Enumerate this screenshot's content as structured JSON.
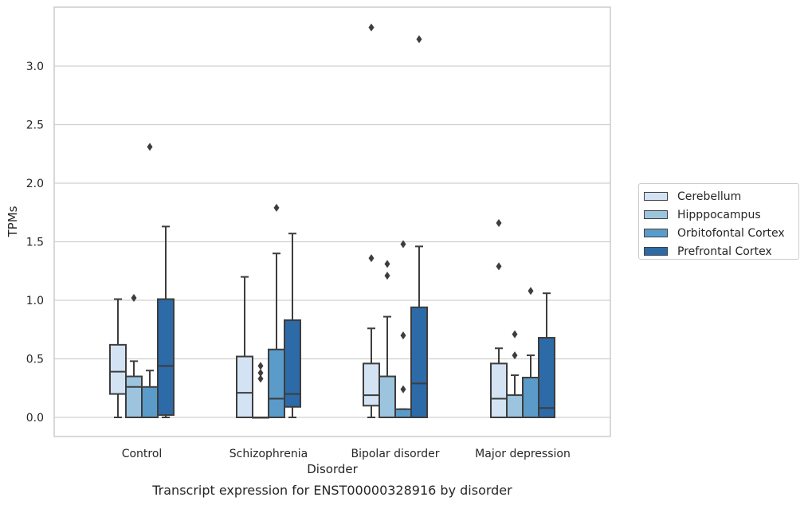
{
  "chart_data": {
    "type": "box",
    "xlabel": "Disorder",
    "ylabel": "TPMs",
    "caption": "Transcript expression for ENST00000328916 by disorder",
    "ylim": [
      -0.16,
      3.52
    ],
    "yticks": [
      0.0,
      0.5,
      1.0,
      1.5,
      2.0,
      2.5,
      3.0
    ],
    "ytick_labels": [
      "0.0",
      "0.5",
      "1.0",
      "1.5",
      "2.0",
      "2.5",
      "3.0"
    ],
    "grid": "horizontal",
    "legend_position": "right",
    "categories": [
      "Control",
      "Schizophrenia",
      "Bipolar disorder",
      "Major depression"
    ],
    "series": [
      {
        "name": "Cerebellum",
        "color": "#d4e3f3",
        "boxes": [
          {
            "whisker_low": 0.0,
            "q1": 0.2,
            "median": 0.39,
            "q3": 0.62,
            "whisker_high": 1.01,
            "outliers": []
          },
          {
            "whisker_low": 0.0,
            "q1": 0.0,
            "median": 0.21,
            "q3": 0.52,
            "whisker_high": 1.2,
            "outliers": []
          },
          {
            "whisker_low": 0.0,
            "q1": 0.1,
            "median": 0.19,
            "q3": 0.46,
            "whisker_high": 0.76,
            "outliers": [
              1.36,
              3.33
            ]
          },
          {
            "whisker_low": 0.0,
            "q1": 0.0,
            "median": 0.16,
            "q3": 0.46,
            "whisker_high": 0.59,
            "outliers": [
              1.29,
              1.66
            ]
          }
        ]
      },
      {
        "name": "Hipppocampus",
        "color": "#9dc4de",
        "boxes": [
          {
            "whisker_low": 0.0,
            "q1": 0.0,
            "median": 0.26,
            "q3": 0.35,
            "whisker_high": 0.48,
            "outliers": [
              1.02
            ]
          },
          {
            "whisker_low": 0.0,
            "q1": 0.0,
            "median": 0.0,
            "q3": 0.0,
            "whisker_high": 0.0,
            "outliers": [
              0.33,
              0.38,
              0.44
            ]
          },
          {
            "whisker_low": 0.0,
            "q1": 0.0,
            "median": 0.0,
            "q3": 0.35,
            "whisker_high": 0.86,
            "outliers": [
              1.21,
              1.31
            ]
          },
          {
            "whisker_low": 0.0,
            "q1": 0.0,
            "median": 0.0,
            "q3": 0.19,
            "whisker_high": 0.36,
            "outliers": [
              0.53,
              0.71
            ]
          }
        ]
      },
      {
        "name": "Orbitofontal Cortex",
        "color": "#5a9bc9",
        "boxes": [
          {
            "whisker_low": 0.0,
            "q1": 0.0,
            "median": 0.0,
            "q3": 0.26,
            "whisker_high": 0.4,
            "outliers": [
              2.31
            ]
          },
          {
            "whisker_low": 0.0,
            "q1": 0.0,
            "median": 0.16,
            "q3": 0.58,
            "whisker_high": 1.4,
            "outliers": [
              1.79
            ]
          },
          {
            "whisker_low": 0.0,
            "q1": 0.0,
            "median": 0.0,
            "q3": 0.07,
            "whisker_high": 0.07,
            "outliers": [
              0.24,
              0.7,
              1.48
            ]
          },
          {
            "whisker_low": 0.0,
            "q1": 0.0,
            "median": 0.0,
            "q3": 0.34,
            "whisker_high": 0.53,
            "outliers": [
              1.08
            ]
          }
        ]
      },
      {
        "name": "Prefrontal Cortex",
        "color": "#2d6aa8",
        "boxes": [
          {
            "whisker_low": 0.0,
            "q1": 0.02,
            "median": 0.44,
            "q3": 1.01,
            "whisker_high": 1.63,
            "outliers": []
          },
          {
            "whisker_low": 0.0,
            "q1": 0.09,
            "median": 0.2,
            "q3": 0.83,
            "whisker_high": 1.57,
            "outliers": []
          },
          {
            "whisker_low": 0.0,
            "q1": 0.0,
            "median": 0.29,
            "q3": 0.94,
            "whisker_high": 1.46,
            "outliers": [
              3.23
            ]
          },
          {
            "whisker_low": 0.0,
            "q1": 0.0,
            "median": 0.08,
            "q3": 0.68,
            "whisker_high": 1.06,
            "outliers": []
          }
        ]
      }
    ]
  }
}
